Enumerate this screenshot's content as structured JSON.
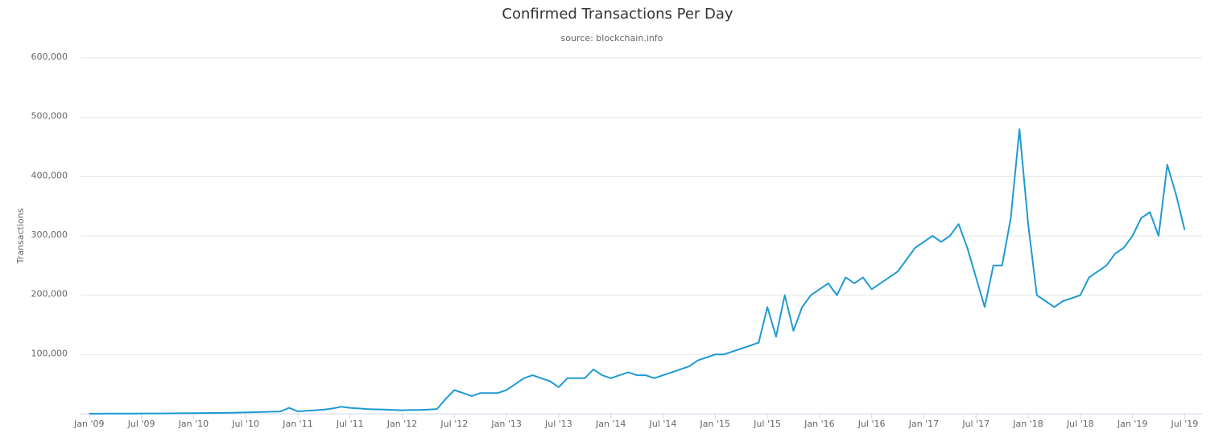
{
  "chart_data": {
    "type": "line",
    "title": "Confirmed Transactions Per Day",
    "subtitle": "source: blockchain.info",
    "y_label": "Transactions",
    "grid": true,
    "x": [
      "2009-01",
      "2009-02",
      "2009-03",
      "2009-04",
      "2009-05",
      "2009-06",
      "2009-07",
      "2009-08",
      "2009-09",
      "2009-10",
      "2009-11",
      "2009-12",
      "2010-01",
      "2010-02",
      "2010-03",
      "2010-04",
      "2010-05",
      "2010-06",
      "2010-07",
      "2010-08",
      "2010-09",
      "2010-10",
      "2010-11",
      "2010-12",
      "2011-01",
      "2011-02",
      "2011-03",
      "2011-04",
      "2011-05",
      "2011-06",
      "2011-07",
      "2011-08",
      "2011-09",
      "2011-10",
      "2011-11",
      "2011-12",
      "2012-01",
      "2012-02",
      "2012-03",
      "2012-04",
      "2012-05",
      "2012-06",
      "2012-07",
      "2012-08",
      "2012-09",
      "2012-10",
      "2012-11",
      "2012-12",
      "2013-01",
      "2013-02",
      "2013-03",
      "2013-04",
      "2013-05",
      "2013-06",
      "2013-07",
      "2013-08",
      "2013-09",
      "2013-10",
      "2013-11",
      "2013-12",
      "2014-01",
      "2014-02",
      "2014-03",
      "2014-04",
      "2014-05",
      "2014-06",
      "2014-07",
      "2014-08",
      "2014-09",
      "2014-10",
      "2014-11",
      "2014-12",
      "2015-01",
      "2015-02",
      "2015-03",
      "2015-04",
      "2015-05",
      "2015-06",
      "2015-07",
      "2015-08",
      "2015-09",
      "2015-10",
      "2015-11",
      "2015-12",
      "2016-01",
      "2016-02",
      "2016-03",
      "2016-04",
      "2016-05",
      "2016-06",
      "2016-07",
      "2016-08",
      "2016-09",
      "2016-10",
      "2016-11",
      "2016-12",
      "2017-01",
      "2017-02",
      "2017-03",
      "2017-04",
      "2017-05",
      "2017-06",
      "2017-07",
      "2017-08",
      "2017-09",
      "2017-10",
      "2017-11",
      "2017-12",
      "2018-01",
      "2018-02",
      "2018-03",
      "2018-04",
      "2018-05",
      "2018-06",
      "2018-07",
      "2018-08",
      "2018-09",
      "2018-10",
      "2018-11",
      "2018-12",
      "2019-01",
      "2019-02",
      "2019-03",
      "2019-04",
      "2019-05",
      "2019-06",
      "2019-07"
    ],
    "series": [
      {
        "name": "Transactions",
        "color": "#1f9ad2",
        "values": [
          100,
          200,
          300,
          300,
          400,
          400,
          500,
          500,
          500,
          700,
          800,
          1000,
          1000,
          1200,
          1300,
          1500,
          1800,
          2000,
          2500,
          2700,
          3000,
          3500,
          4000,
          10000,
          4000,
          5000,
          6000,
          7000,
          9000,
          12000,
          10000,
          9000,
          8000,
          7500,
          7000,
          6500,
          6000,
          6500,
          6500,
          7000,
          8000,
          25000,
          40000,
          35000,
          30000,
          35000,
          35000,
          35000,
          40000,
          50000,
          60000,
          65000,
          60000,
          55000,
          45000,
          60000,
          60000,
          60000,
          75000,
          65000,
          60000,
          65000,
          70000,
          65000,
          65000,
          60000,
          65000,
          70000,
          75000,
          80000,
          90000,
          95000,
          100000,
          100000,
          105000,
          110000,
          115000,
          120000,
          180000,
          130000,
          200000,
          140000,
          180000,
          200000,
          210000,
          220000,
          200000,
          230000,
          220000,
          230000,
          210000,
          220000,
          230000,
          240000,
          260000,
          280000,
          290000,
          300000,
          290000,
          300000,
          320000,
          280000,
          230000,
          180000,
          250000,
          250000,
          330000,
          480000,
          320000,
          200000,
          190000,
          180000,
          190000,
          195000,
          200000,
          230000,
          240000,
          250000,
          270000,
          280000,
          300000,
          330000,
          340000,
          300000,
          420000,
          370000,
          310000
        ]
      }
    ],
    "xlim": [
      "2008-12",
      "2019-09"
    ],
    "xticks": [
      {
        "value": "2009-01",
        "label": "Jan '09"
      },
      {
        "value": "2009-07",
        "label": "Jul '09"
      },
      {
        "value": "2010-01",
        "label": "Jan '10"
      },
      {
        "value": "2010-07",
        "label": "Jul '10"
      },
      {
        "value": "2011-01",
        "label": "Jan '11"
      },
      {
        "value": "2011-07",
        "label": "Jul '11"
      },
      {
        "value": "2012-01",
        "label": "Jan '12"
      },
      {
        "value": "2012-07",
        "label": "Jul '12"
      },
      {
        "value": "2013-01",
        "label": "Jan '13"
      },
      {
        "value": "2013-07",
        "label": "Jul '13"
      },
      {
        "value": "2014-01",
        "label": "Jan '14"
      },
      {
        "value": "2014-07",
        "label": "Jul '14"
      },
      {
        "value": "2015-01",
        "label": "Jan '15"
      },
      {
        "value": "2015-07",
        "label": "Jul '15"
      },
      {
        "value": "2016-01",
        "label": "Jan '16"
      },
      {
        "value": "2016-07",
        "label": "Jul '16"
      },
      {
        "value": "2017-01",
        "label": "Jan '17"
      },
      {
        "value": "2017-07",
        "label": "Jul '17"
      },
      {
        "value": "2018-01",
        "label": "Jan '18"
      },
      {
        "value": "2018-07",
        "label": "Jul '18"
      },
      {
        "value": "2019-01",
        "label": "Jan '19"
      },
      {
        "value": "2019-07",
        "label": "Jul '19"
      }
    ],
    "ylim": [
      0,
      600000
    ],
    "yticks": [
      {
        "value": 100000,
        "label": "100,000"
      },
      {
        "value": 200000,
        "label": "200,000"
      },
      {
        "value": 300000,
        "label": "300,000"
      },
      {
        "value": 400000,
        "label": "400,000"
      },
      {
        "value": 500000,
        "label": "500,000"
      },
      {
        "value": 600000,
        "label": "600,000"
      }
    ]
  }
}
